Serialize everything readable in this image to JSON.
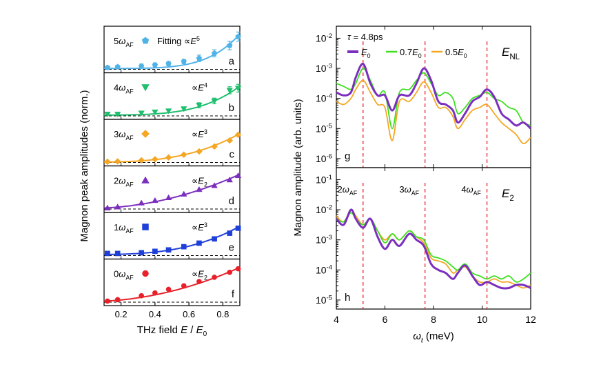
{
  "chart_data": [
    {
      "type": "scatter",
      "title": "",
      "xlabel": "THz field E / E0",
      "ylabel": "Magnon peak amplitudes (norm.)",
      "xlim": [
        0.1,
        0.9
      ],
      "ylim": [
        0,
        1
      ],
      "xticks": [
        0.2,
        0.4,
        0.6,
        0.8
      ],
      "xtick_labels": [
        "0.2",
        "0.4",
        "0.6",
        "0.8"
      ],
      "panels": [
        {
          "id": "a",
          "label": "5ωAF",
          "fit": "Fitting ∝E5",
          "color": "#4fb3e8",
          "marker": "pentagon",
          "errorbars": true,
          "x": [
            0.12,
            0.18,
            0.32,
            0.4,
            0.48,
            0.57,
            0.66,
            0.75,
            0.84,
            0.89
          ],
          "y": [
            0.05,
            0.07,
            0.09,
            0.12,
            0.16,
            0.22,
            0.31,
            0.45,
            0.67,
            0.92
          ],
          "err": [
            0.07,
            0.07,
            0.12,
            0.12,
            0.12,
            0.12,
            0.18,
            0.2,
            0.24,
            0.26
          ]
        },
        {
          "id": "b",
          "label": "4ωAF",
          "fit": "∝E4",
          "color": "#1fbf6e",
          "marker": "triangle-down",
          "errorbars": true,
          "x": [
            0.12,
            0.18,
            0.32,
            0.4,
            0.48,
            0.57,
            0.66,
            0.75,
            0.84,
            0.89
          ],
          "y": [
            0.05,
            0.05,
            0.08,
            0.11,
            0.14,
            0.2,
            0.3,
            0.42,
            0.72,
            0.78
          ],
          "err": [
            0.04,
            0.04,
            0.1,
            0.1,
            0.1,
            0.1,
            0.14,
            0.16,
            0.2,
            0.22
          ]
        },
        {
          "id": "c",
          "label": "3ωAF",
          "fit": "∝E3",
          "color": "#f5a623",
          "marker": "diamond",
          "errorbars": false,
          "x": [
            0.12,
            0.18,
            0.32,
            0.4,
            0.48,
            0.57,
            0.66,
            0.75,
            0.84,
            0.89
          ],
          "y": [
            0.02,
            0.03,
            0.06,
            0.09,
            0.14,
            0.22,
            0.31,
            0.45,
            0.62,
            0.78
          ]
        },
        {
          "id": "d",
          "label": "2ωAF",
          "fit": "∝E2",
          "color": "#7b2fbe",
          "marker": "triangle-up",
          "errorbars": false,
          "x": [
            0.12,
            0.18,
            0.32,
            0.4,
            0.48,
            0.57,
            0.66,
            0.75,
            0.84,
            0.89
          ],
          "y": [
            0.03,
            0.06,
            0.17,
            0.24,
            0.32,
            0.42,
            0.55,
            0.66,
            0.82,
            0.94
          ]
        },
        {
          "id": "e",
          "label": "1ωAF",
          "fit": "∝E3",
          "color": "#1f3fd9",
          "marker": "square",
          "errorbars": false,
          "x": [
            0.12,
            0.18,
            0.32,
            0.4,
            0.48,
            0.57,
            0.66,
            0.75,
            0.84,
            0.89
          ],
          "y": [
            0.06,
            0.06,
            0.08,
            0.12,
            0.16,
            0.25,
            0.35,
            0.47,
            0.63,
            0.77
          ]
        },
        {
          "id": "f",
          "label": "0ωAF",
          "fit": "∝E2",
          "color": "#e8202a",
          "marker": "circle",
          "errorbars": false,
          "x": [
            0.12,
            0.18,
            0.32,
            0.4,
            0.48,
            0.57,
            0.66,
            0.75,
            0.84,
            0.89
          ],
          "y": [
            0.03,
            0.07,
            0.18,
            0.26,
            0.36,
            0.46,
            0.58,
            0.7,
            0.84,
            0.94
          ]
        }
      ]
    },
    {
      "type": "line",
      "title": "",
      "xlabel": "ωt (meV)",
      "ylabel": "Magnon amplitude (arb. units)",
      "xlim": [
        4,
        12
      ],
      "xticks": [
        4,
        6,
        8,
        10,
        12
      ],
      "xtick_labels": [
        "4",
        "6",
        "8",
        "10",
        "12"
      ],
      "vertical_lines": [
        5.1,
        7.65,
        10.2
      ],
      "panels": [
        {
          "id": "g",
          "corner_label": "ENL",
          "annotation": "τ = 4.8ps",
          "ylim_log": [
            -6.3,
            -1.6
          ],
          "yticks": [
            -6,
            -5,
            -4,
            -3,
            -2
          ],
          "ytick_labels": [
            "10-6",
            "10-5",
            "10-4",
            "10-3",
            "10-2"
          ],
          "legend": [
            "E0",
            "0.7E0",
            "0.5E0"
          ],
          "series": [
            {
              "name": "E0",
              "color": "#7b2fbe",
              "x": [
                4.0,
                4.3,
                4.6,
                4.8,
                5.1,
                5.4,
                5.7,
                6.0,
                6.3,
                6.6,
                7.0,
                7.3,
                7.6,
                7.9,
                8.2,
                8.5,
                8.8,
                9.0,
                9.3,
                9.6,
                9.9,
                10.2,
                10.5,
                10.8,
                11.1,
                11.4,
                11.7,
                12.0
              ],
              "y": [
                -3.8,
                -3.9,
                -3.8,
                -3.3,
                -2.85,
                -3.5,
                -3.9,
                -3.9,
                -4.4,
                -3.9,
                -3.9,
                -3.5,
                -3.0,
                -3.4,
                -4.1,
                -4.2,
                -4.4,
                -4.8,
                -4.5,
                -4.1,
                -3.95,
                -3.7,
                -3.95,
                -4.5,
                -4.7,
                -4.9,
                -4.8,
                -5.0
              ]
            },
            {
              "name": "0.7E0",
              "color": "#3ce01f",
              "x": [
                4.0,
                4.3,
                4.6,
                4.8,
                5.1,
                5.4,
                5.7,
                6.0,
                6.3,
                6.6,
                7.0,
                7.3,
                7.6,
                7.9,
                8.2,
                8.5,
                8.8,
                9.0,
                9.3,
                9.6,
                9.9,
                10.2,
                10.5,
                10.8,
                11.1,
                11.4,
                11.7,
                12.0
              ],
              "y": [
                -3.5,
                -3.6,
                -3.7,
                -3.5,
                -3.0,
                -3.4,
                -3.9,
                -3.8,
                -5.0,
                -3.8,
                -3.7,
                -3.4,
                -3.15,
                -3.5,
                -3.9,
                -3.8,
                -4.0,
                -4.5,
                -4.3,
                -4.0,
                -3.9,
                -3.8,
                -4.0,
                -4.1,
                -4.3,
                -4.4,
                -4.8,
                -4.9
              ]
            },
            {
              "name": "0.5E0",
              "color": "#f5a623",
              "x": [
                4.0,
                4.3,
                4.6,
                4.8,
                5.1,
                5.4,
                5.7,
                6.0,
                6.3,
                6.6,
                7.0,
                7.3,
                7.6,
                7.9,
                8.2,
                8.5,
                8.8,
                9.0,
                9.3,
                9.6,
                9.9,
                10.2,
                10.5,
                10.8,
                11.1,
                11.4,
                11.7,
                12.0
              ],
              "y": [
                -4.1,
                -4.2,
                -4.0,
                -3.7,
                -3.4,
                -3.8,
                -4.2,
                -4.3,
                -5.4,
                -4.1,
                -4.1,
                -3.8,
                -3.45,
                -3.8,
                -4.3,
                -4.3,
                -4.6,
                -5.0,
                -4.7,
                -4.4,
                -4.3,
                -4.2,
                -4.5,
                -4.8,
                -5.0,
                -5.2,
                -5.5,
                -5.3
              ]
            }
          ]
        },
        {
          "id": "h",
          "corner_label": "E2",
          "ylim_log": [
            -5.3,
            -0.6
          ],
          "yticks": [
            -5,
            -4,
            -3,
            -2,
            -1
          ],
          "ytick_labels": [
            "10-5",
            "10-4",
            "10-3",
            "10-2",
            "10-1"
          ],
          "harmonic_labels": [
            {
              "x": 4.45,
              "text": "2ωAF"
            },
            {
              "x": 7.0,
              "text": "3ωAF"
            },
            {
              "x": 9.55,
              "text": "4ωAF"
            }
          ],
          "series": [
            {
              "name": "E0",
              "color": "#7b2fbe",
              "x": [
                4.0,
                4.3,
                4.6,
                4.8,
                5.1,
                5.4,
                5.7,
                6.0,
                6.3,
                6.6,
                7.0,
                7.3,
                7.6,
                7.9,
                8.2,
                8.5,
                8.8,
                9.0,
                9.3,
                9.6,
                9.9,
                10.2,
                10.5,
                10.8,
                11.1,
                11.4,
                11.7,
                12.0
              ],
              "y": [
                -2.3,
                -2.5,
                -2.0,
                -2.3,
                -2.6,
                -2.3,
                -2.9,
                -3.3,
                -3.0,
                -3.2,
                -2.8,
                -3.0,
                -3.2,
                -3.8,
                -4.0,
                -4.1,
                -4.3,
                -4.1,
                -3.85,
                -4.2,
                -4.5,
                -4.4,
                -4.5,
                -4.6,
                -4.6,
                -4.5,
                -4.5,
                -4.6
              ]
            },
            {
              "name": "0.7E0",
              "color": "#3ce01f",
              "x": [
                4.0,
                4.3,
                4.6,
                4.8,
                5.1,
                5.4,
                5.7,
                6.0,
                6.3,
                6.6,
                7.0,
                7.3,
                7.6,
                7.9,
                8.2,
                8.5,
                8.8,
                9.0,
                9.3,
                9.6,
                9.9,
                10.2,
                10.5,
                10.8,
                11.1,
                11.4,
                11.7,
                12.0
              ],
              "y": [
                -2.3,
                -2.4,
                -2.1,
                -2.3,
                -2.5,
                -2.3,
                -2.7,
                -3.1,
                -2.8,
                -3.0,
                -2.7,
                -2.9,
                -3.0,
                -3.5,
                -3.6,
                -3.7,
                -3.9,
                -4.0,
                -3.8,
                -4.1,
                -4.2,
                -4.3,
                -4.2,
                -4.3,
                -4.2,
                -4.4,
                -4.3,
                -4.1
              ]
            },
            {
              "name": "0.5E0",
              "color": "#f5a623",
              "x": [
                4.0,
                4.3,
                4.6,
                4.8,
                5.1,
                5.4,
                5.7,
                6.0,
                6.3,
                6.6,
                7.0,
                7.3,
                7.6,
                7.9,
                8.2,
                8.5,
                8.8,
                9.0,
                9.3,
                9.6,
                9.9,
                10.2,
                10.5,
                10.8,
                11.1,
                11.4,
                11.7,
                12.0
              ],
              "y": [
                -2.2,
                -2.4,
                -2.0,
                -2.2,
                -2.5,
                -2.3,
                -2.7,
                -3.0,
                -2.8,
                -3.0,
                -2.7,
                -2.9,
                -3.1,
                -3.6,
                -3.7,
                -3.8,
                -4.1,
                -4.0,
                -3.9,
                -4.2,
                -4.4,
                -4.4,
                -4.3,
                -4.4,
                -4.4,
                -4.5,
                -4.6,
                -4.5
              ]
            }
          ]
        }
      ]
    }
  ]
}
